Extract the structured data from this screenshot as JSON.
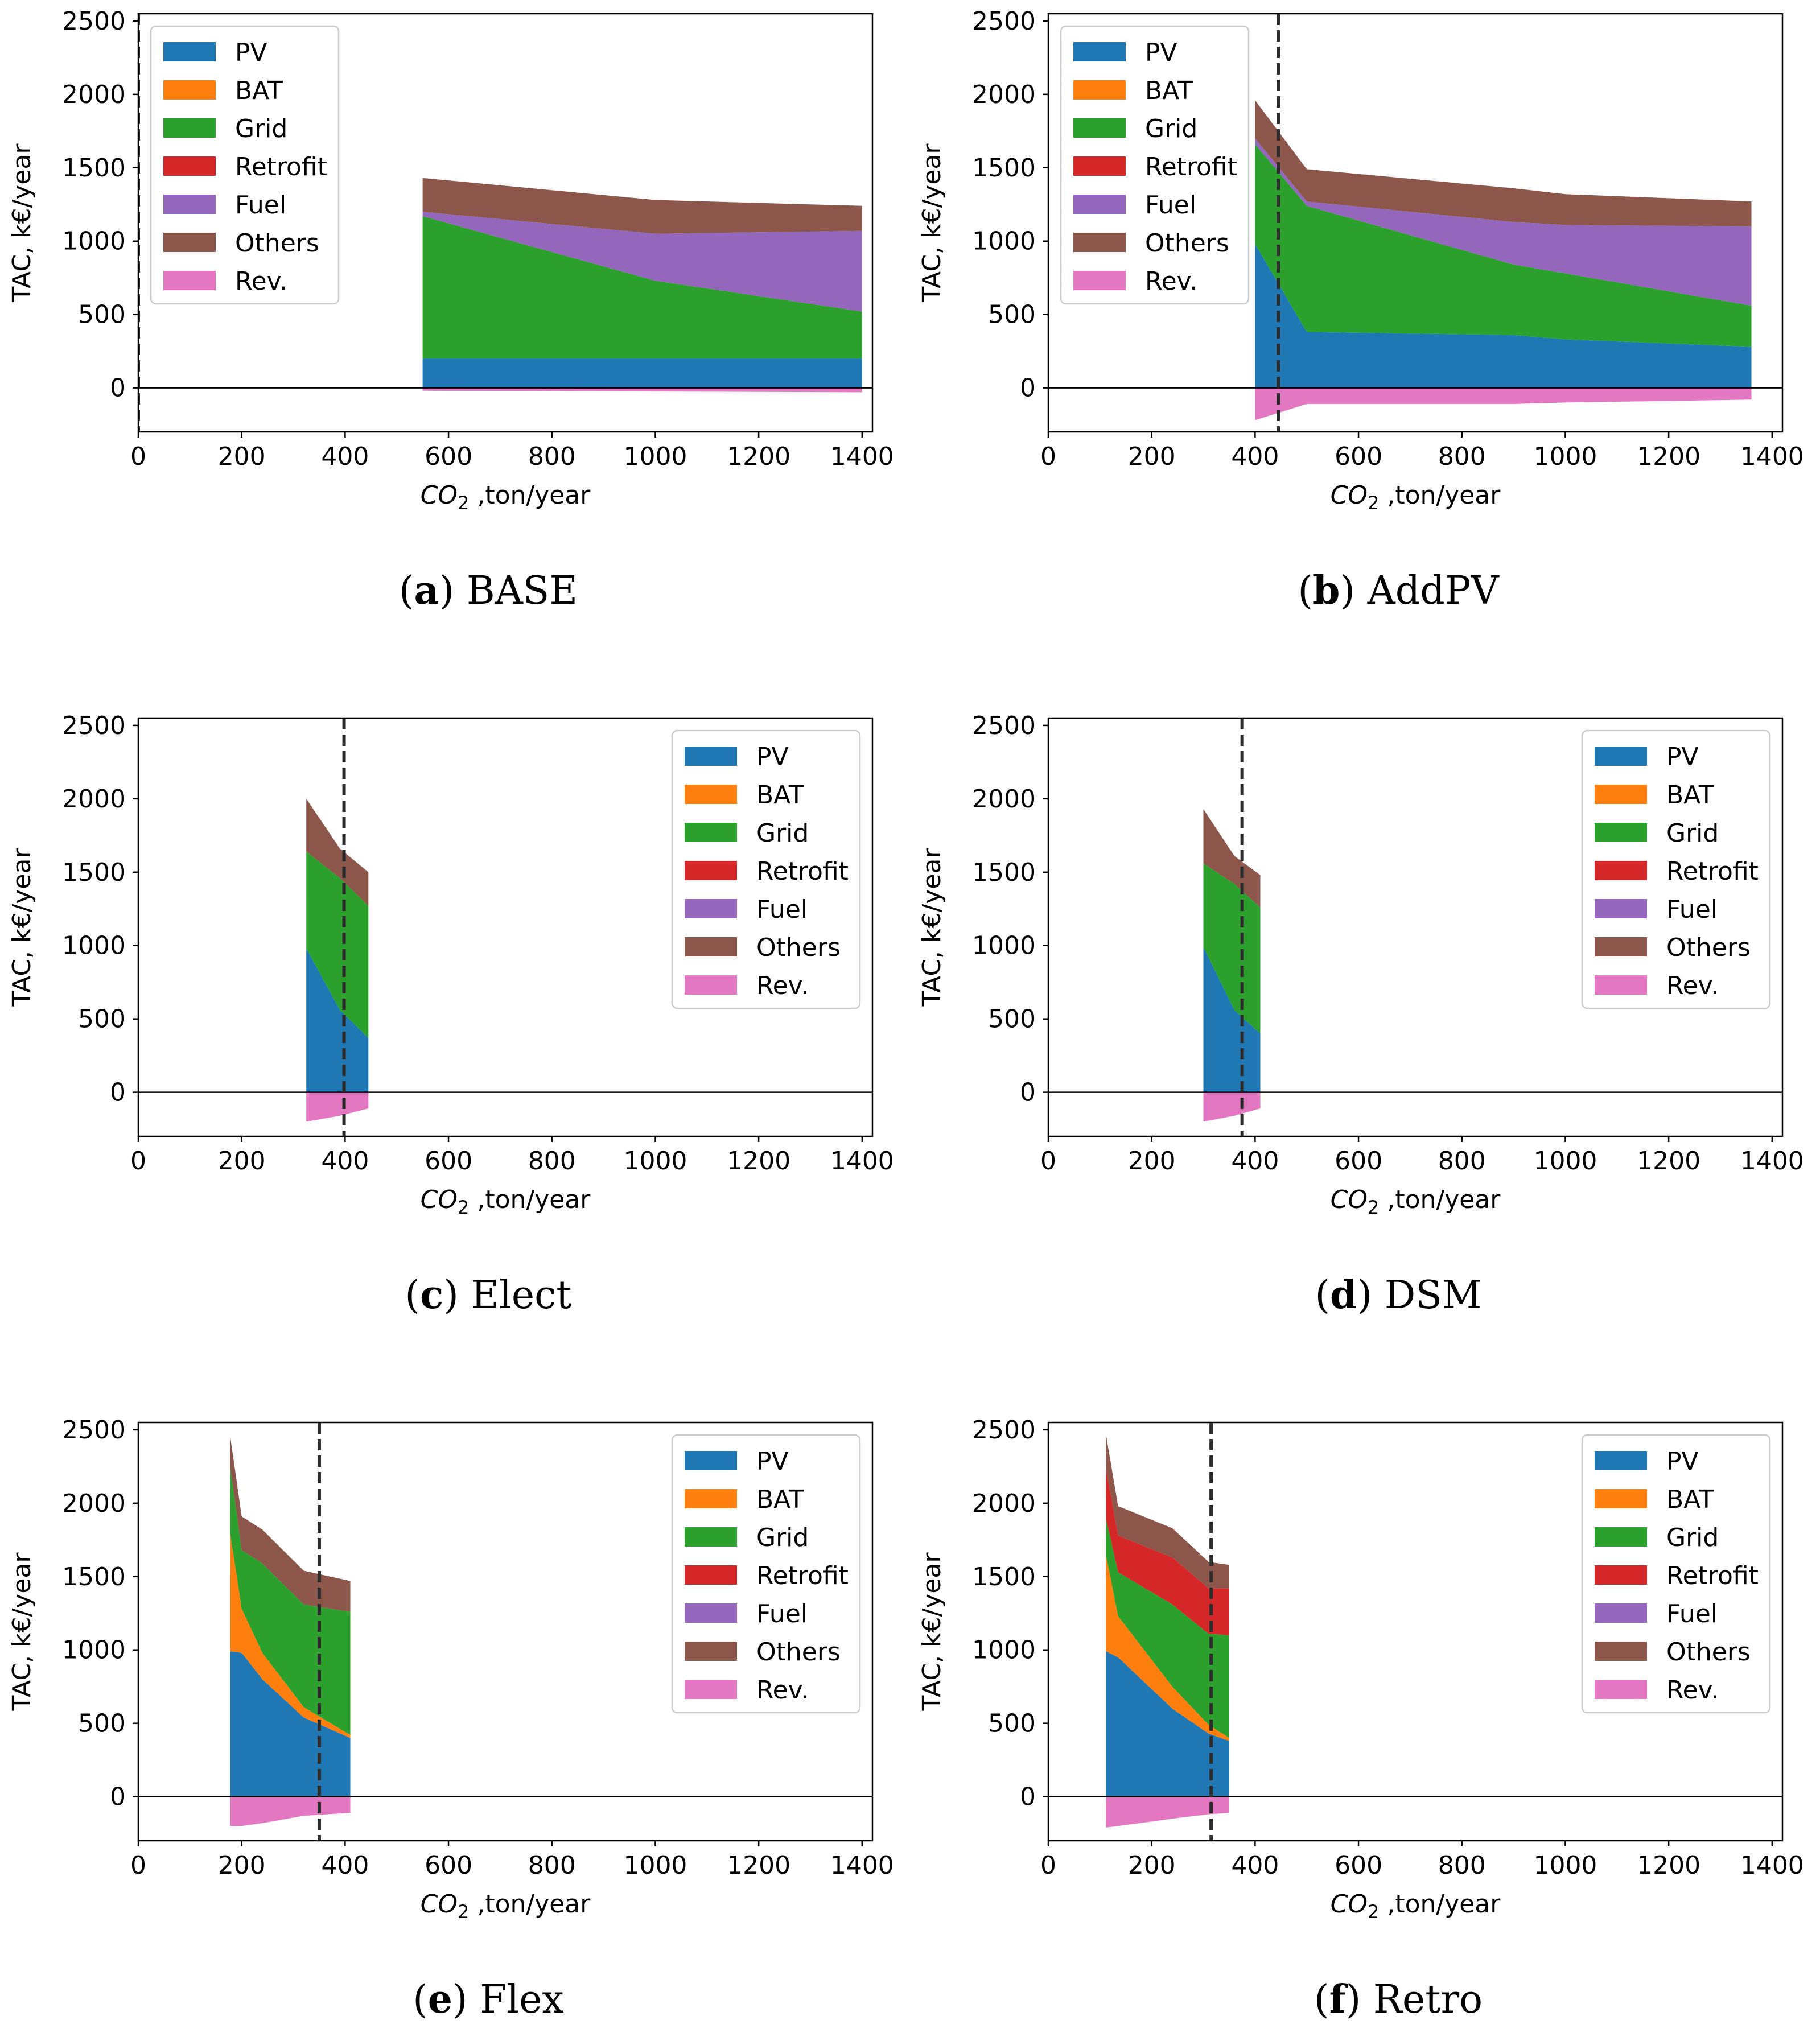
{
  "colors": {
    "PV": "#1f77b4",
    "BAT": "#ff7f0e",
    "Grid": "#2ca02c",
    "Retrofit": "#d62728",
    "Fuel": "#9467bd",
    "Others": "#8c564b",
    "Rev.": "#e377c2"
  },
  "chart_data": [
    {
      "id": "a",
      "type": "area",
      "caption_letter": "a",
      "caption_name": "BASE",
      "xlabel_sym": "CO",
      "xlabel_sub": "2",
      "xlabel_rest": " ,ton/year",
      "ylabel": "TAC, k€/year",
      "xlim": [
        0,
        1420
      ],
      "ylim": [
        -300,
        2550
      ],
      "xticks": [
        "0",
        "200",
        "400",
        "600",
        "800",
        "1000",
        "1200",
        "1400"
      ],
      "yticks": [
        "2500",
        "2000",
        "1500",
        "1000",
        "500",
        "0"
      ],
      "legend_position": "top-left",
      "legend": [
        "PV",
        "BAT",
        "Grid",
        "Retrofit",
        "Fuel",
        "Others",
        "Rev."
      ],
      "vline": 0,
      "x": [
        550,
        1000,
        1400
      ],
      "series": [
        {
          "name": "PV",
          "values": [
            200,
            200,
            200
          ]
        },
        {
          "name": "BAT",
          "values": [
            0,
            0,
            0
          ]
        },
        {
          "name": "Grid",
          "values": [
            970,
            530,
            320
          ]
        },
        {
          "name": "Retrofit",
          "values": [
            0,
            0,
            0
          ]
        },
        {
          "name": "Fuel",
          "values": [
            30,
            320,
            550
          ]
        },
        {
          "name": "Others",
          "values": [
            230,
            230,
            170
          ]
        }
      ],
      "rev": [
        -20,
        -25,
        -30
      ]
    },
    {
      "id": "b",
      "type": "area",
      "caption_letter": "b",
      "caption_name": "AddPV",
      "xlabel_sym": "CO",
      "xlabel_sub": "2",
      "xlabel_rest": " ,ton/year",
      "ylabel": "TAC, k€/year",
      "xlim": [
        0,
        1420
      ],
      "ylim": [
        -300,
        2550
      ],
      "xticks": [
        "0",
        "200",
        "400",
        "600",
        "800",
        "1000",
        "1200",
        "1400"
      ],
      "yticks": [
        "2500",
        "2000",
        "1500",
        "1000",
        "500",
        "0"
      ],
      "legend_position": "top-left",
      "legend": [
        "PV",
        "BAT",
        "Grid",
        "Retrofit",
        "Fuel",
        "Others",
        "Rev."
      ],
      "vline": 445,
      "x": [
        400,
        500,
        900,
        1000,
        1360
      ],
      "series": [
        {
          "name": "PV",
          "values": [
            980,
            380,
            360,
            330,
            280
          ]
        },
        {
          "name": "BAT",
          "values": [
            0,
            0,
            0,
            0,
            0
          ]
        },
        {
          "name": "Grid",
          "values": [
            680,
            860,
            480,
            450,
            280
          ]
        },
        {
          "name": "Retrofit",
          "values": [
            0,
            0,
            0,
            0,
            0
          ]
        },
        {
          "name": "Fuel",
          "values": [
            40,
            30,
            290,
            330,
            540
          ]
        },
        {
          "name": "Others",
          "values": [
            260,
            220,
            230,
            210,
            170
          ]
        }
      ],
      "rev": [
        -220,
        -110,
        -110,
        -100,
        -80
      ]
    },
    {
      "id": "c",
      "type": "area",
      "caption_letter": "c",
      "caption_name": "Elect",
      "xlabel_sym": "CO",
      "xlabel_sub": "2",
      "xlabel_rest": " ,ton/year",
      "ylabel": "TAC, k€/year",
      "xlim": [
        0,
        1420
      ],
      "ylim": [
        -300,
        2550
      ],
      "xticks": [
        "0",
        "200",
        "400",
        "600",
        "800",
        "1000",
        "1200",
        "1400"
      ],
      "yticks": [
        "2500",
        "2000",
        "1500",
        "1000",
        "500",
        "0"
      ],
      "legend_position": "top-right",
      "legend": [
        "PV",
        "BAT",
        "Grid",
        "Retrofit",
        "Fuel",
        "Others",
        "Rev."
      ],
      "vline": 398,
      "x": [
        325,
        390,
        445
      ],
      "series": [
        {
          "name": "PV",
          "values": [
            980,
            560,
            370
          ]
        },
        {
          "name": "BAT",
          "values": [
            0,
            0,
            0
          ]
        },
        {
          "name": "Grid",
          "values": [
            660,
            900,
            900
          ]
        },
        {
          "name": "Retrofit",
          "values": [
            0,
            0,
            0
          ]
        },
        {
          "name": "Fuel",
          "values": [
            0,
            0,
            0
          ]
        },
        {
          "name": "Others",
          "values": [
            360,
            200,
            230
          ]
        }
      ],
      "rev": [
        -200,
        -160,
        -110
      ]
    },
    {
      "id": "d",
      "type": "area",
      "caption_letter": "d",
      "caption_name": "DSM",
      "xlabel_sym": "CO",
      "xlabel_sub": "2",
      "xlabel_rest": " ,ton/year",
      "ylabel": "TAC, k€/year",
      "xlim": [
        0,
        1420
      ],
      "ylim": [
        -300,
        2550
      ],
      "xticks": [
        "0",
        "200",
        "400",
        "600",
        "800",
        "1000",
        "1200",
        "1400"
      ],
      "yticks": [
        "2500",
        "2000",
        "1500",
        "1000",
        "500",
        "0"
      ],
      "legend_position": "top-right",
      "legend": [
        "PV",
        "BAT",
        "Grid",
        "Retrofit",
        "Fuel",
        "Others",
        "Rev."
      ],
      "vline": 375,
      "x": [
        300,
        360,
        410
      ],
      "series": [
        {
          "name": "PV",
          "values": [
            990,
            560,
            400
          ]
        },
        {
          "name": "BAT",
          "values": [
            0,
            0,
            0
          ]
        },
        {
          "name": "Grid",
          "values": [
            570,
            860,
            860
          ]
        },
        {
          "name": "Retrofit",
          "values": [
            0,
            0,
            0
          ]
        },
        {
          "name": "Fuel",
          "values": [
            0,
            0,
            0
          ]
        },
        {
          "name": "Others",
          "values": [
            370,
            190,
            220
          ]
        }
      ],
      "rev": [
        -200,
        -160,
        -110
      ]
    },
    {
      "id": "e",
      "type": "area",
      "caption_letter": "e",
      "caption_name": "Flex",
      "xlabel_sym": "CO",
      "xlabel_sub": "2",
      "xlabel_rest": " ,ton/year",
      "ylabel": "TAC, k€/year",
      "xlim": [
        0,
        1420
      ],
      "ylim": [
        -300,
        2550
      ],
      "xticks": [
        "0",
        "200",
        "400",
        "600",
        "800",
        "1000",
        "1200",
        "1400"
      ],
      "yticks": [
        "2500",
        "2000",
        "1500",
        "1000",
        "500",
        "0"
      ],
      "legend_position": "top-right",
      "legend": [
        "PV",
        "BAT",
        "Grid",
        "Retrofit",
        "Fuel",
        "Others",
        "Rev."
      ],
      "vline": 350,
      "x": [
        178,
        200,
        240,
        320,
        410
      ],
      "series": [
        {
          "name": "PV",
          "values": [
            990,
            980,
            800,
            540,
            400
          ]
        },
        {
          "name": "BAT",
          "values": [
            800,
            300,
            180,
            70,
            20
          ]
        },
        {
          "name": "Grid",
          "values": [
            450,
            400,
            610,
            700,
            840
          ]
        },
        {
          "name": "Retrofit",
          "values": [
            0,
            0,
            0,
            0,
            0
          ]
        },
        {
          "name": "Fuel",
          "values": [
            0,
            0,
            0,
            0,
            0
          ]
        },
        {
          "name": "Others",
          "values": [
            210,
            230,
            230,
            230,
            210
          ]
        }
      ],
      "rev": [
        -200,
        -200,
        -180,
        -130,
        -110
      ]
    },
    {
      "id": "f",
      "type": "area",
      "caption_letter": "f",
      "caption_name": "Retro",
      "xlabel_sym": "CO",
      "xlabel_sub": "2",
      "xlabel_rest": " ,ton/year",
      "ylabel": "TAC, k€/year",
      "xlim": [
        0,
        1420
      ],
      "ylim": [
        -300,
        2550
      ],
      "xticks": [
        "0",
        "200",
        "400",
        "600",
        "800",
        "1000",
        "1200",
        "1400"
      ],
      "yticks": [
        "2500",
        "2000",
        "1500",
        "1000",
        "500",
        "0"
      ],
      "legend_position": "top-right",
      "legend": [
        "PV",
        "BAT",
        "Grid",
        "Retrofit",
        "Fuel",
        "Others",
        "Rev."
      ],
      "vline": 315,
      "x": [
        112,
        135,
        240,
        310,
        350
      ],
      "series": [
        {
          "name": "PV",
          "values": [
            990,
            950,
            600,
            430,
            380
          ]
        },
        {
          "name": "BAT",
          "values": [
            650,
            280,
            150,
            60,
            20
          ]
        },
        {
          "name": "Grid",
          "values": [
            250,
            300,
            560,
            620,
            700
          ]
        },
        {
          "name": "Retrofit",
          "values": [
            340,
            250,
            320,
            310,
            320
          ]
        },
        {
          "name": "Fuel",
          "values": [
            0,
            0,
            0,
            0,
            0
          ]
        },
        {
          "name": "Others",
          "values": [
            230,
            200,
            200,
            180,
            160
          ]
        }
      ],
      "rev": [
        -210,
        -200,
        -150,
        -120,
        -110
      ]
    }
  ]
}
